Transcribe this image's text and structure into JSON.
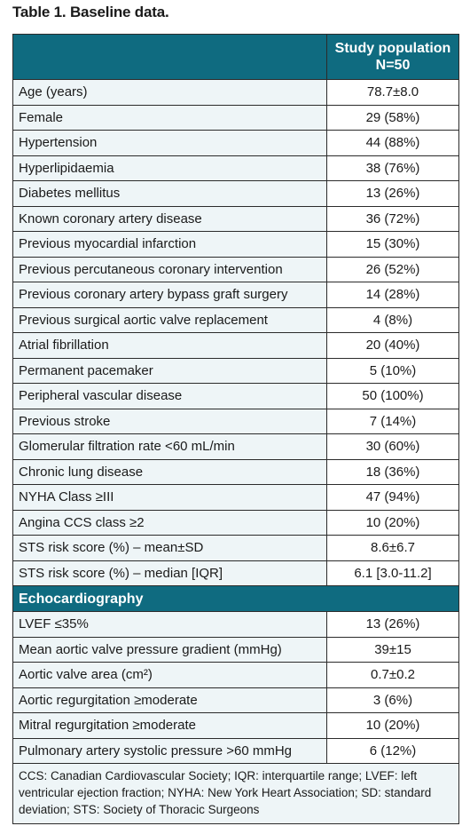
{
  "caption": "Table 1. Baseline data.",
  "header": {
    "col1": "",
    "col2_line1": "Study population",
    "col2_line2": "N=50"
  },
  "rows": [
    {
      "label": "Age (years)",
      "value": "78.7±8.0"
    },
    {
      "label": "Female",
      "value": "29 (58%)"
    },
    {
      "label": "Hypertension",
      "value": "44 (88%)"
    },
    {
      "label": "Hyperlipidaemia",
      "value": "38 (76%)"
    },
    {
      "label": "Diabetes mellitus",
      "value": "13 (26%)"
    },
    {
      "label": "Known coronary artery disease",
      "value": "36 (72%)"
    },
    {
      "label": "Previous myocardial infarction",
      "value": "15 (30%)"
    },
    {
      "label": "Previous percutaneous coronary intervention",
      "value": "26 (52%)"
    },
    {
      "label": "Previous coronary artery bypass graft surgery",
      "value": "14 (28%)"
    },
    {
      "label": "Previous surgical aortic valve replacement",
      "value": "4 (8%)"
    },
    {
      "label": "Atrial fibrillation",
      "value": "20 (40%)"
    },
    {
      "label": "Permanent pacemaker",
      "value": "5 (10%)"
    },
    {
      "label": "Peripheral vascular disease",
      "value": "50 (100%)"
    },
    {
      "label": "Previous stroke",
      "value": "7 (14%)"
    },
    {
      "label": "Glomerular filtration rate <60 mL/min",
      "value": "30 (60%)"
    },
    {
      "label": "Chronic lung disease",
      "value": "18 (36%)"
    },
    {
      "label": "NYHA Class ≥III",
      "value": "47 (94%)"
    },
    {
      "label": "Angina CCS class ≥2",
      "value": "10 (20%)"
    },
    {
      "label": "STS risk score (%) – mean±SD",
      "value": "8.6±6.7"
    },
    {
      "label": "STS risk score (%) – median [IQR]",
      "value": "6.1 [3.0-11.2]"
    }
  ],
  "section": "Echocardiography",
  "echo_rows": [
    {
      "label": "LVEF ≤35%",
      "value": "13 (26%)"
    },
    {
      "label": "Mean aortic valve pressure gradient (mmHg)",
      "value": "39±15"
    },
    {
      "label": "Aortic valve area (cm²)",
      "value": "0.7±0.2"
    },
    {
      "label": "Aortic regurgitation ≥moderate",
      "value": "3 (6%)"
    },
    {
      "label": "Mitral regurgitation ≥moderate",
      "value": "10 (20%)"
    },
    {
      "label": "Pulmonary artery systolic pressure >60 mmHg",
      "value": "6 (12%)"
    }
  ],
  "footnote": "CCS: Canadian Cardiovascular Society; IQR: interquartile range; LVEF: left ventricular ejection fraction; NYHA: New York Heart Association; SD: standard deviation; STS: Society of Thoracic Surgeons",
  "colors": {
    "header_bg": "#0f6b80",
    "row_bg": "#eef5f7"
  }
}
